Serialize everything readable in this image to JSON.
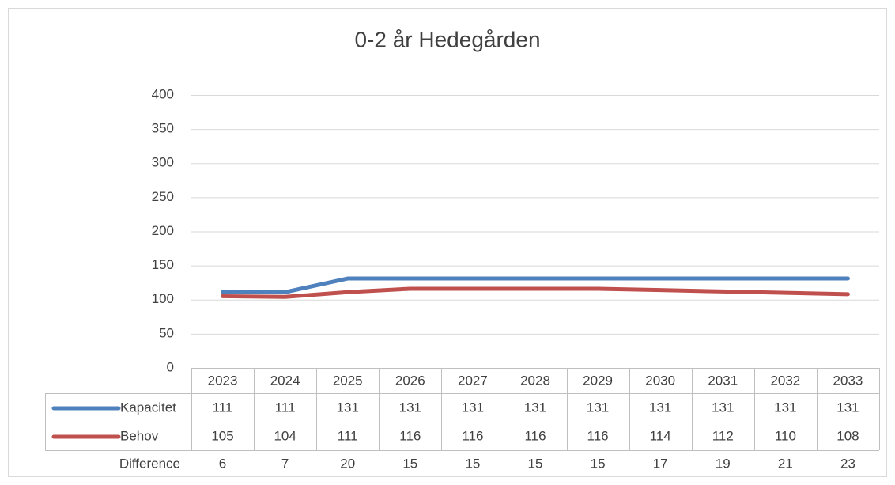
{
  "chart_data": {
    "type": "line",
    "title": "0-2 år Hedegården",
    "categories": [
      "2023",
      "2024",
      "2025",
      "2026",
      "2027",
      "2028",
      "2029",
      "2030",
      "2031",
      "2032",
      "2033"
    ],
    "series": [
      {
        "name": "Kapacitet",
        "color": "#4f81bd",
        "values": [
          111,
          111,
          131,
          131,
          131,
          131,
          131,
          131,
          131,
          131,
          131
        ]
      },
      {
        "name": "Behov",
        "color": "#c0504d",
        "values": [
          105,
          104,
          111,
          116,
          116,
          116,
          116,
          114,
          112,
          110,
          108
        ]
      },
      {
        "name": "Difference",
        "values": [
          6,
          7,
          20,
          15,
          15,
          15,
          15,
          17,
          19,
          21,
          23
        ]
      }
    ],
    "ylim": [
      0,
      400
    ],
    "yticks": [
      0,
      50,
      100,
      150,
      200,
      250,
      300,
      350,
      400
    ],
    "grid": true
  }
}
